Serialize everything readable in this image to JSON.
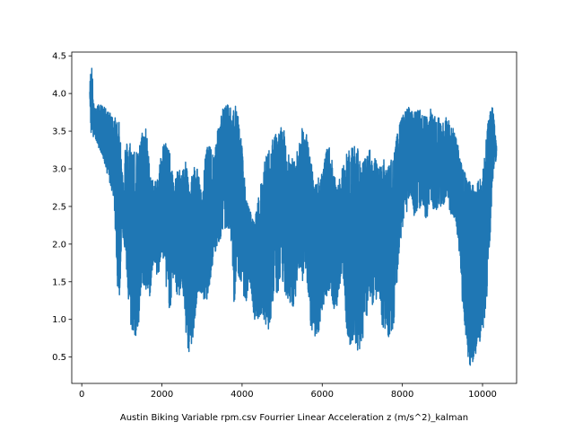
{
  "chart_data": {
    "type": "line",
    "title": "",
    "xlabel": "Austin Biking Variable rpm.csv Fourrier Linear Acceleration z (m/s^2)_kalman",
    "ylabel": "",
    "xlim": [
      -250,
      10850
    ],
    "ylim": [
      0.15,
      4.55
    ],
    "xticks": [
      0,
      2000,
      4000,
      6000,
      8000,
      10000
    ],
    "yticks": [
      0.5,
      1.0,
      1.5,
      2.0,
      2.5,
      3.0,
      3.5,
      4.0,
      4.5
    ],
    "grid": false,
    "series": [
      {
        "color": "#1f77b4",
        "x_start": 200,
        "x_end": 10350,
        "envelope": {
          "x": [
            200,
            230,
            260,
            290,
            320,
            400,
            500,
            600,
            700,
            800,
            900,
            950,
            1000,
            1100,
            1200,
            1300,
            1400,
            1500,
            1600,
            1700,
            1800,
            1900,
            2000,
            2100,
            2200,
            2300,
            2400,
            2500,
            2600,
            2700,
            2800,
            2900,
            3000,
            3100,
            3200,
            3300,
            3400,
            3500,
            3600,
            3700,
            3800,
            3900,
            4000,
            4100,
            4200,
            4300,
            4400,
            4500,
            4600,
            4700,
            4800,
            4900,
            5000,
            5100,
            5200,
            5300,
            5400,
            5500,
            5600,
            5700,
            5800,
            5900,
            6000,
            6100,
            6200,
            6300,
            6400,
            6500,
            6600,
            6700,
            6800,
            6900,
            7000,
            7100,
            7200,
            7300,
            7400,
            7500,
            7600,
            7700,
            7800,
            7900,
            8000,
            8100,
            8200,
            8300,
            8400,
            8500,
            8600,
            8700,
            8800,
            8900,
            9000,
            9100,
            9200,
            9300,
            9400,
            9500,
            9600,
            9700,
            9800,
            9900,
            10000,
            10100,
            10200,
            10250,
            10300,
            10350
          ],
          "upper": [
            4.1,
            4.38,
            4.35,
            3.9,
            3.8,
            3.85,
            3.85,
            3.8,
            3.75,
            3.7,
            3.65,
            3.6,
            3.0,
            3.35,
            3.4,
            3.3,
            3.2,
            3.5,
            3.6,
            3.0,
            2.8,
            2.9,
            3.3,
            3.4,
            3.2,
            2.8,
            3.0,
            3.0,
            3.1,
            2.9,
            3.05,
            3.0,
            2.6,
            3.3,
            3.3,
            3.2,
            3.55,
            3.8,
            3.85,
            3.85,
            3.85,
            3.8,
            3.3,
            2.6,
            2.45,
            2.3,
            2.6,
            2.9,
            3.2,
            3.3,
            3.45,
            3.5,
            3.6,
            3.4,
            3.2,
            3.1,
            3.3,
            3.55,
            3.5,
            3.2,
            2.8,
            2.9,
            3.0,
            3.25,
            3.3,
            2.9,
            2.8,
            3.0,
            3.2,
            3.3,
            3.35,
            3.25,
            3.1,
            3.15,
            3.3,
            3.2,
            3.0,
            3.2,
            3.0,
            3.1,
            3.25,
            3.55,
            3.7,
            3.8,
            3.85,
            3.75,
            3.8,
            3.75,
            3.7,
            3.8,
            3.75,
            3.7,
            3.6,
            3.7,
            3.6,
            3.5,
            3.3,
            3.0,
            3.0,
            2.8,
            2.8,
            2.9,
            2.95,
            3.5,
            3.8,
            3.82,
            3.6,
            3.3
          ],
          "lower": [
            4.0,
            3.45,
            3.5,
            3.4,
            3.45,
            3.3,
            3.2,
            3.0,
            2.8,
            2.6,
            1.35,
            1.3,
            2.2,
            1.8,
            0.9,
            0.8,
            0.7,
            1.5,
            1.35,
            1.3,
            1.8,
            1.5,
            1.9,
            1.4,
            1.1,
            1.6,
            1.2,
            1.5,
            0.8,
            0.4,
            0.9,
            1.4,
            1.3,
            1.2,
            1.5,
            1.8,
            2.0,
            2.1,
            2.2,
            2.2,
            1.2,
            1.6,
            1.4,
            1.2,
            1.5,
            1.0,
            1.0,
            1.1,
            0.9,
            0.85,
            1.4,
            1.3,
            1.5,
            1.3,
            1.2,
            1.1,
            1.7,
            1.5,
            1.6,
            0.9,
            0.75,
            0.8,
            1.1,
            1.3,
            1.4,
            1.1,
            1.2,
            1.7,
            0.9,
            0.6,
            0.75,
            0.55,
            0.7,
            1.0,
            1.3,
            1.1,
            1.4,
            0.9,
            0.7,
            0.8,
            0.9,
            1.8,
            2.2,
            2.4,
            2.7,
            2.3,
            2.4,
            2.5,
            2.3,
            2.6,
            2.4,
            2.5,
            2.5,
            2.6,
            2.4,
            2.3,
            2.0,
            1.2,
            0.6,
            0.35,
            0.5,
            0.65,
            0.8,
            1.2,
            2.2,
            2.8,
            3.1,
            3.1
          ]
        }
      }
    ]
  }
}
